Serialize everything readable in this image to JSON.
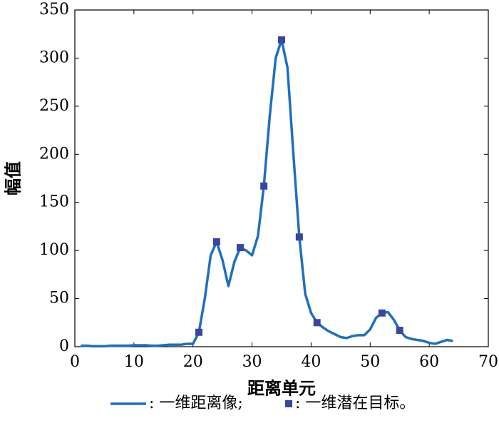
{
  "chart_data": {
    "type": "line",
    "xlabel": "距离单元",
    "ylabel": "幅值",
    "xlim": [
      0,
      70
    ],
    "xticks": [
      0,
      10,
      20,
      30,
      40,
      50,
      60,
      70
    ],
    "ylim": [
      0,
      350
    ],
    "yticks": [
      0,
      50,
      100,
      150,
      200,
      250,
      300,
      350
    ],
    "series": [
      {
        "name": ": 一维距离像;",
        "color": "#1f6fbf",
        "mode": "line",
        "x": [
          1,
          2,
          3,
          4,
          5,
          6,
          7,
          8,
          9,
          10,
          11,
          12,
          13,
          14,
          15,
          16,
          17,
          18,
          19,
          20,
          21,
          22,
          23,
          24,
          25,
          26,
          27,
          28,
          29,
          30,
          31,
          32,
          33,
          34,
          35,
          36,
          37,
          38,
          39,
          40,
          41,
          42,
          43,
          44,
          45,
          46,
          47,
          48,
          49,
          50,
          51,
          52,
          53,
          54,
          55,
          56,
          57,
          58,
          59,
          60,
          61,
          62,
          63,
          64
        ],
        "values": [
          1,
          1,
          0.5,
          0.5,
          0.5,
          1,
          1,
          1,
          1,
          1.5,
          1.5,
          1.5,
          1,
          1,
          1.5,
          2,
          2,
          2,
          3,
          3,
          15,
          50,
          95,
          109,
          90,
          63,
          88,
          103,
          100,
          95,
          115,
          167,
          240,
          300,
          319,
          290,
          200,
          114,
          55,
          35,
          25,
          20,
          16,
          13,
          10,
          9,
          11,
          12,
          12,
          18,
          30,
          35,
          36,
          28,
          17,
          10,
          8,
          7,
          6,
          4,
          3,
          5,
          7,
          6
        ]
      },
      {
        "name": ": 一维潜在目标。",
        "color": "#3a45a0",
        "mode": "markers",
        "x": [
          21,
          24,
          28,
          32,
          35,
          38,
          41,
          52,
          55
        ],
        "values": [
          15,
          109,
          103,
          167,
          319,
          114,
          25,
          35,
          17
        ]
      }
    ]
  }
}
